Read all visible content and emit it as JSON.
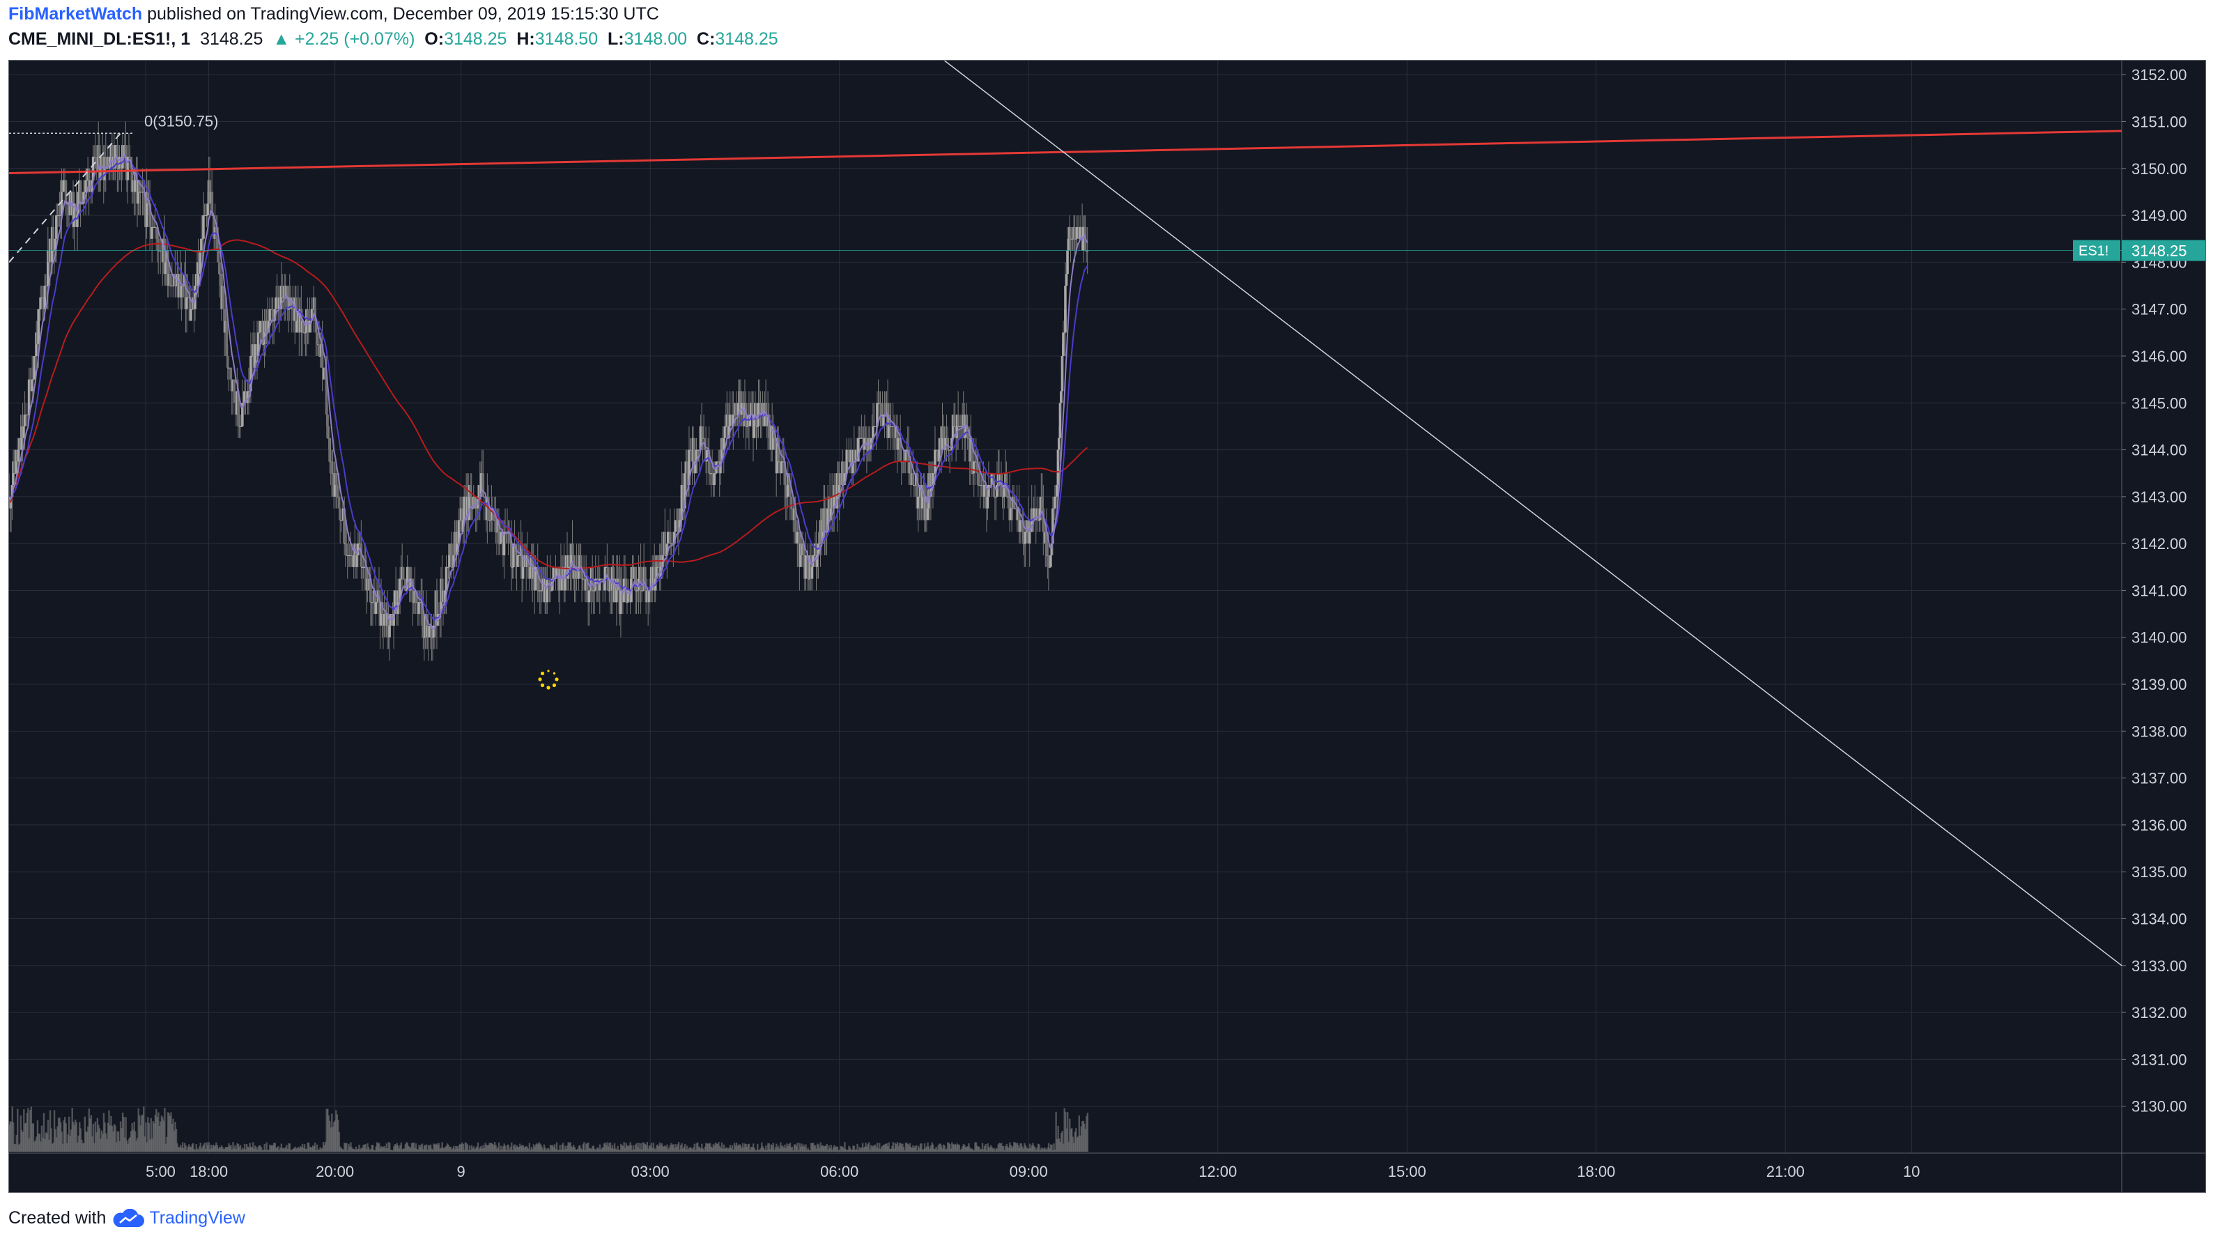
{
  "header": {
    "author": "FibMarketWatch",
    "published_text": "published on TradingView.com, December 09, 2019 15:15:30 UTC",
    "symbol": "CME_MINI_DL:ES1!, 1",
    "last": "3148.25",
    "change": "▲ +2.25 (+0.07%)",
    "o_label": "O:",
    "o_value": "3148.25",
    "h_label": "H:",
    "h_value": "3148.50",
    "l_label": "L:",
    "l_value": "3148.00",
    "c_label": "C:",
    "c_value": "3148.25"
  },
  "footer": {
    "created_with": "Created with",
    "brand": "TradingView"
  },
  "colors": {
    "background": "#131722",
    "grid": "#2a2e39",
    "up": "#a8a8a8",
    "down": "#6e6e6e",
    "wick": "#7a7a7a",
    "ema_fast": "#8e7cc3",
    "ema_slow": "#4b3cc9",
    "ma_long": "#b71c1c",
    "trend_red": "#e53935",
    "trend_white": "#d1d4dc",
    "price_label": "#26a69a",
    "volume": "#7b7b7b"
  },
  "chart_data": {
    "type": "candlestick",
    "symbol_label": "ES1!",
    "last_price": 3148.25,
    "last_price_label": "3148.25",
    "ylim": [
      3129.0,
      3152.3
    ],
    "y_ticks": [
      "3130.00",
      "3131.00",
      "3132.00",
      "3133.00",
      "3134.00",
      "3135.00",
      "3136.00",
      "3137.00",
      "3138.00",
      "3139.00",
      "3140.00",
      "3141.00",
      "3142.00",
      "3143.00",
      "3144.00",
      "3145.00",
      "3146.00",
      "3147.00",
      "3148.00",
      "3149.00",
      "3150.00",
      "3151.00",
      "3152.00"
    ],
    "x_ticks": [
      {
        "label": "5:00",
        "t": 0
      },
      {
        "label": "18:00",
        "t": 60
      },
      {
        "label": "20:00",
        "t": 180
      },
      {
        "label": "9",
        "t": 300
      },
      {
        "label": "03:00",
        "t": 480
      },
      {
        "label": "06:00",
        "t": 660
      },
      {
        "label": "09:00",
        "t": 840
      },
      {
        "label": "12:00",
        "t": 1020
      },
      {
        "label": "15:00",
        "t": 1200
      },
      {
        "label": "18:00",
        "t": 1380
      },
      {
        "label": "21:00",
        "t": 1560
      },
      {
        "label": "10",
        "t": 1680
      }
    ],
    "x_range_minutes": [
      -130,
      1880
    ],
    "path_key_points": [
      [
        -130,
        3143.0
      ],
      [
        -115,
        3144.5
      ],
      [
        -100,
        3147.0
      ],
      [
        -88,
        3148.5
      ],
      [
        -78,
        3149.7
      ],
      [
        -68,
        3149.0
      ],
      [
        -55,
        3149.8
      ],
      [
        -40,
        3150.2
      ],
      [
        -28,
        3150.3
      ],
      [
        -15,
        3150.0
      ],
      [
        -5,
        3149.3
      ],
      [
        8,
        3148.8
      ],
      [
        22,
        3147.8
      ],
      [
        35,
        3147.4
      ],
      [
        45,
        3146.9
      ],
      [
        52,
        3148.3
      ],
      [
        60,
        3149.6
      ],
      [
        68,
        3148.2
      ],
      [
        78,
        3146.0
      ],
      [
        90,
        3144.6
      ],
      [
        105,
        3146.2
      ],
      [
        120,
        3146.8
      ],
      [
        135,
        3147.4
      ],
      [
        148,
        3146.6
      ],
      [
        160,
        3146.9
      ],
      [
        168,
        3145.9
      ],
      [
        178,
        3143.4
      ],
      [
        190,
        3142.1
      ],
      [
        205,
        3141.6
      ],
      [
        218,
        3140.8
      ],
      [
        232,
        3140.3
      ],
      [
        245,
        3141.4
      ],
      [
        258,
        3140.6
      ],
      [
        270,
        3140.1
      ],
      [
        285,
        3141.2
      ],
      [
        300,
        3142.6
      ],
      [
        318,
        3143.2
      ],
      [
        335,
        3142.3
      ],
      [
        350,
        3141.8
      ],
      [
        365,
        3141.4
      ],
      [
        378,
        3141.1
      ],
      [
        392,
        3141.3
      ],
      [
        408,
        3141.6
      ],
      [
        422,
        3141.0
      ],
      [
        438,
        3141.3
      ],
      [
        452,
        3140.9
      ],
      [
        465,
        3141.2
      ],
      [
        480,
        3141.0
      ],
      [
        492,
        3141.8
      ],
      [
        505,
        3142.4
      ],
      [
        518,
        3143.8
      ],
      [
        528,
        3144.2
      ],
      [
        540,
        3143.3
      ],
      [
        552,
        3144.4
      ],
      [
        562,
        3145.0
      ],
      [
        575,
        3144.6
      ],
      [
        588,
        3144.8
      ],
      [
        600,
        3143.9
      ],
      [
        612,
        3143.2
      ],
      [
        622,
        3141.8
      ],
      [
        632,
        3141.3
      ],
      [
        642,
        3142.2
      ],
      [
        652,
        3142.8
      ],
      [
        665,
        3143.6
      ],
      [
        678,
        3144.0
      ],
      [
        690,
        3144.3
      ],
      [
        700,
        3144.9
      ],
      [
        712,
        3144.2
      ],
      [
        722,
        3143.8
      ],
      [
        732,
        3143.2
      ],
      [
        742,
        3142.8
      ],
      [
        752,
        3144.0
      ],
      [
        765,
        3144.3
      ],
      [
        778,
        3144.6
      ],
      [
        790,
        3143.5
      ],
      [
        800,
        3143.1
      ],
      [
        812,
        3143.4
      ],
      [
        826,
        3142.6
      ],
      [
        838,
        3142.2
      ],
      [
        850,
        3142.9
      ],
      [
        860,
        3141.6
      ],
      [
        868,
        3143.9
      ],
      [
        878,
        3148.5
      ],
      [
        888,
        3148.6
      ],
      [
        896,
        3148.25
      ]
    ],
    "annotations": {
      "fib_label": "0(3150.75)",
      "fib_level": 3150.75,
      "trendline_red": {
        "from": [
          -130,
          3149.9
        ],
        "to": [
          1880,
          3150.8
        ]
      },
      "trendline_white": {
        "from": [
          760,
          3152.3
        ],
        "to": [
          1880,
          3133.0
        ]
      }
    },
    "moving_averages": [
      "EMA fast",
      "EMA slow",
      "MA long"
    ],
    "grid": true,
    "volume_panel": true
  }
}
